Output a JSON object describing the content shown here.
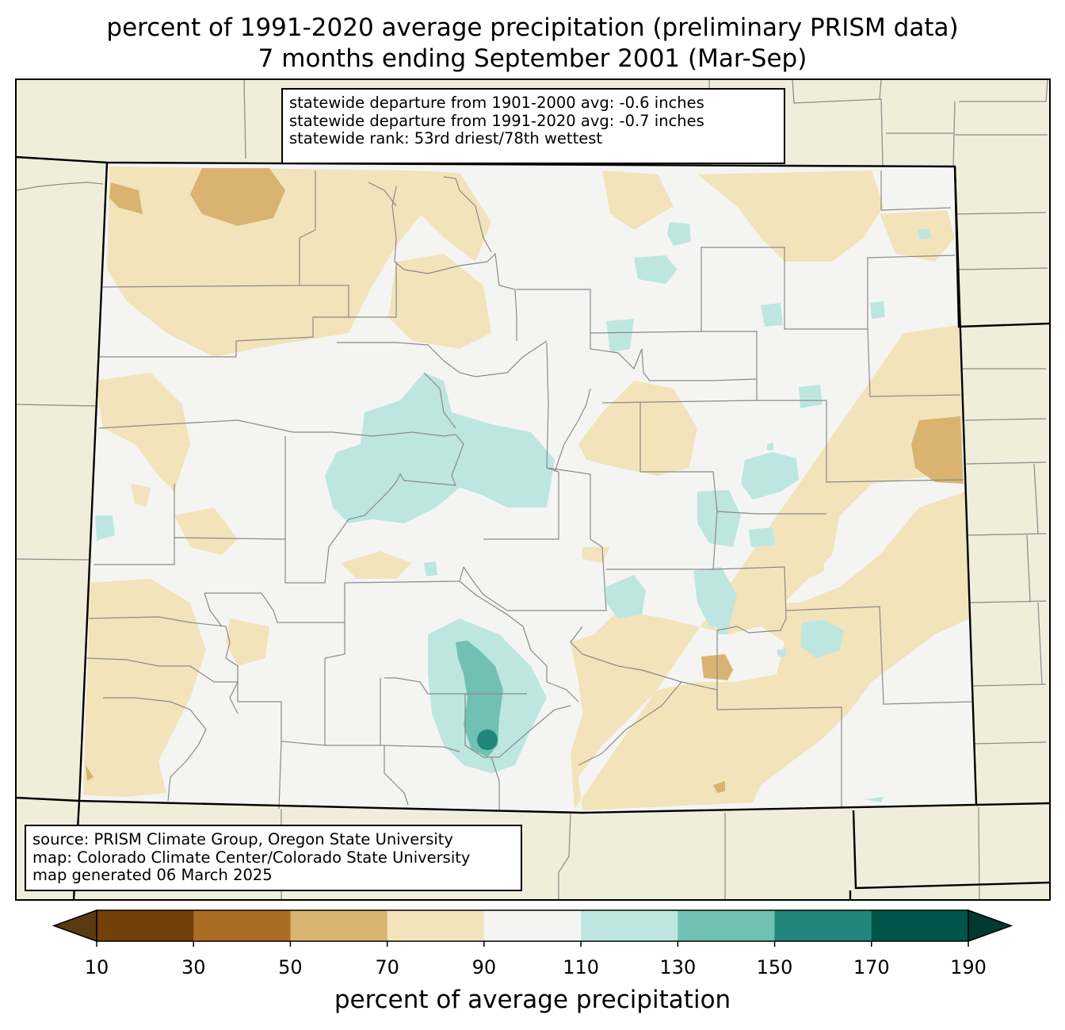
{
  "title": {
    "line1": "percent of 1991-2020 average precipitation (preliminary PRISM data)",
    "line2": "7 months ending September 2001 (Mar-Sep)"
  },
  "stats": {
    "line1": "statewide departure from 1901-2000 avg: -0.6 inches",
    "line2": "statewide departure from 1991-2020 avg: -0.7 inches",
    "line3": "statewide rank: 53rd driest/78th wettest"
  },
  "source": {
    "line1": "source: PRISM Climate Group, Oregon State University",
    "line2": "map: Colorado Climate Center/Colorado State University",
    "line3": "map generated 06 March 2025"
  },
  "colorbar": {
    "label": "percent of average precipitation",
    "ticks": [
      "10",
      "30",
      "50",
      "70",
      "90",
      "110",
      "130",
      "150",
      "170",
      "190"
    ],
    "under_color": "#5a3a10",
    "over_color": "#003a2e",
    "colors": [
      "#734009",
      "#ab6d23",
      "#d9b36f",
      "#f3e3bb",
      "#f4f5f3",
      "#bde6e0",
      "#70c0b3",
      "#21867b",
      "#00554a"
    ]
  },
  "colors": {
    "background": "#efeedb",
    "state_fill": "#f4f5f3",
    "county_lines": "#8a8a8a",
    "state_lines": "#000000"
  }
}
